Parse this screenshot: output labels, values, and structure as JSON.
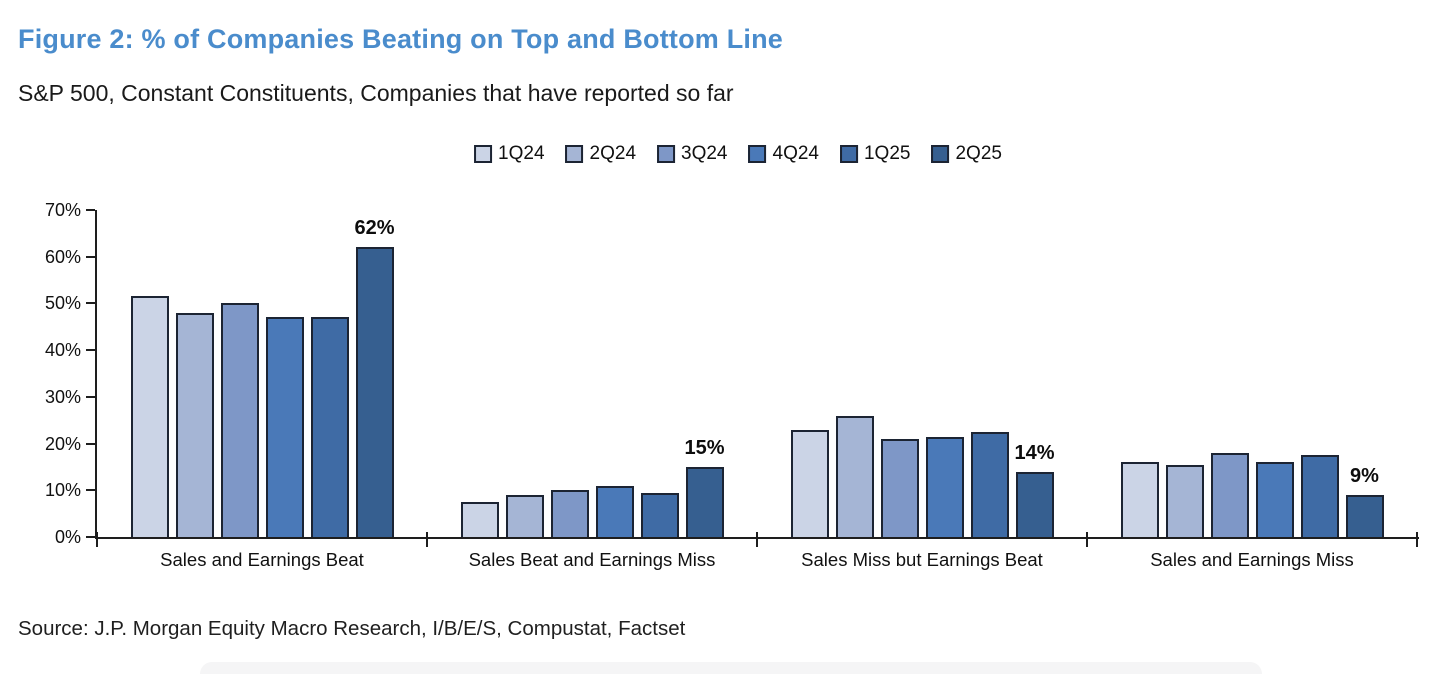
{
  "header": {
    "title": "Figure 2: % of Companies Beating on Top and Bottom Line",
    "subtitle": "S&P 500, Constant Constituents, Companies that have reported so far",
    "title_color": "#4A8CCC"
  },
  "source": "Source: J.P. Morgan Equity Macro Research, I/B/E/S, Compustat, Factset",
  "chart_data": {
    "type": "bar",
    "title": "Figure 2: % of Companies Beating on Top and Bottom Line",
    "subtitle": "S&P 500, Constant Constituents, Companies that have reported so far",
    "categories": [
      "Sales and Earnings Beat",
      "Sales Beat and Earnings Miss",
      "Sales Miss but Earnings Beat",
      "Sales and Earnings Miss"
    ],
    "series": [
      {
        "name": "1Q24",
        "color": "#CBD4E6",
        "values": [
          51.5,
          7.5,
          23,
          16
        ]
      },
      {
        "name": "2Q24",
        "color": "#A5B5D5",
        "values": [
          48,
          9,
          26,
          15.5
        ]
      },
      {
        "name": "3Q24",
        "color": "#7E97C7",
        "values": [
          50,
          10,
          21,
          18
        ]
      },
      {
        "name": "4Q24",
        "color": "#4A79B8",
        "values": [
          47,
          11,
          21.5,
          16
        ]
      },
      {
        "name": "1Q25",
        "color": "#3F6BA5",
        "values": [
          47,
          9.5,
          22.5,
          17.5
        ]
      },
      {
        "name": "2Q25",
        "color": "#365F90",
        "values": [
          62,
          15,
          14,
          9
        ]
      }
    ],
    "bar_labels": {
      "series": "2Q25",
      "values": [
        "62%",
        "15%",
        "14%",
        "9%"
      ]
    },
    "xlabel": "",
    "ylabel": "",
    "ylim": [
      0,
      70
    ],
    "ytick_step": 10,
    "ytick_labels": [
      "0%",
      "10%",
      "20%",
      "30%",
      "40%",
      "50%",
      "60%",
      "70%"
    ],
    "legend_position": "top",
    "grid": false
  }
}
